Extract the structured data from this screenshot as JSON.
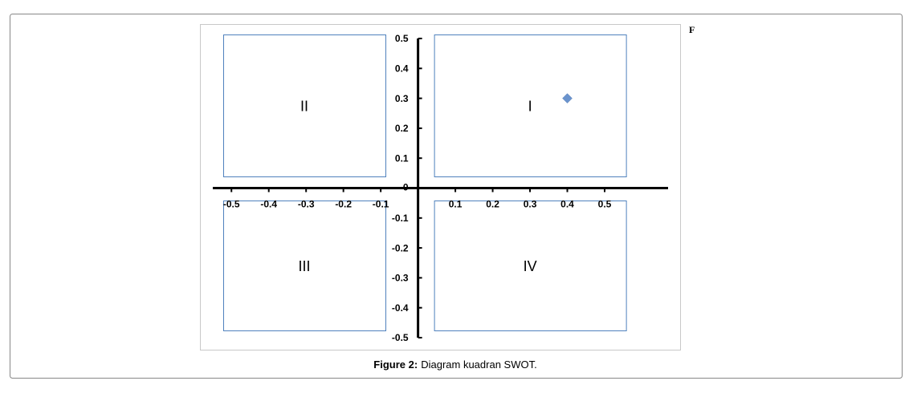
{
  "chart_data": {
    "type": "scatter",
    "x": [
      0.4
    ],
    "values": [
      0.3
    ],
    "color": "#6a93cd",
    "xlim": [
      -0.55,
      0.67
    ],
    "ylim": [
      -0.5,
      0.5
    ],
    "xticks": [
      -0.5,
      -0.4,
      -0.3,
      -0.2,
      -0.1,
      0.1,
      0.2,
      0.3,
      0.4,
      0.5
    ],
    "yticks": [
      0.5,
      0.4,
      0.3,
      0.2,
      0.1,
      0,
      -0.1,
      -0.2,
      -0.3,
      -0.4,
      -0.5
    ],
    "quadrant_labels": [
      "I",
      "II",
      "III",
      "IV"
    ]
  },
  "corner_mark": "F",
  "caption": {
    "label": "Figure 2:",
    "text": "Diagram kuadran SWOT."
  }
}
